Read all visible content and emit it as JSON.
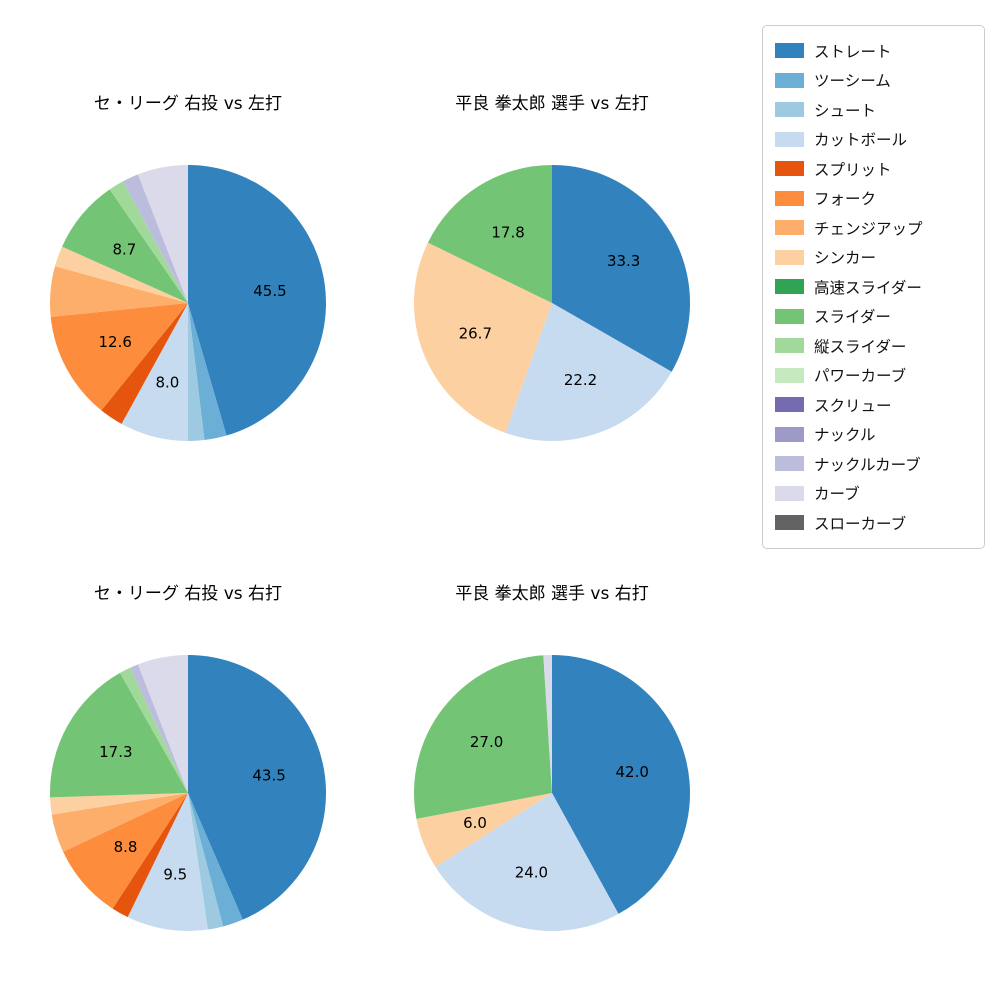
{
  "page": {
    "background": "#ffffff"
  },
  "legend": {
    "items": [
      {
        "label": "ストレート",
        "color": "#3182bd"
      },
      {
        "label": "ツーシーム",
        "color": "#6baed6"
      },
      {
        "label": "シュート",
        "color": "#9ecae1"
      },
      {
        "label": "カットボール",
        "color": "#c6dbef"
      },
      {
        "label": "スプリット",
        "color": "#e6550d"
      },
      {
        "label": "フォーク",
        "color": "#fd8d3c"
      },
      {
        "label": "チェンジアップ",
        "color": "#fdae6b"
      },
      {
        "label": "シンカー",
        "color": "#fdd0a2"
      },
      {
        "label": "高速スライダー",
        "color": "#31a354"
      },
      {
        "label": "スライダー",
        "color": "#74c476"
      },
      {
        "label": "縦スライダー",
        "color": "#a1d99b"
      },
      {
        "label": "パワーカーブ",
        "color": "#c7e9c0"
      },
      {
        "label": "スクリュー",
        "color": "#756bb1"
      },
      {
        "label": "ナックル",
        "color": "#9e9ac8"
      },
      {
        "label": "ナックルカーブ",
        "color": "#bcbddc"
      },
      {
        "label": "カーブ",
        "color": "#dadaeb"
      },
      {
        "label": "スローカーブ",
        "color": "#636363"
      }
    ]
  },
  "chart_data": [
    {
      "type": "pie",
      "title": "セ・リーグ 右投 vs 左打",
      "start_angle_deg": -90,
      "direction": "clockwise",
      "value_unit": "percent",
      "label_distance": 0.6,
      "slices": [
        {
          "label": "ストレート",
          "value": 45.5,
          "labeled": true
        },
        {
          "label": "ツーシーム",
          "value": 2.6,
          "labeled": false
        },
        {
          "label": "シュート",
          "value": 1.9,
          "labeled": false
        },
        {
          "label": "カットボール",
          "value": 8.0,
          "labeled": true
        },
        {
          "label": "スプリット",
          "value": 2.8,
          "labeled": false
        },
        {
          "label": "フォーク",
          "value": 12.6,
          "labeled": true
        },
        {
          "label": "チェンジアップ",
          "value": 5.9,
          "labeled": false
        },
        {
          "label": "シンカー",
          "value": 2.4,
          "labeled": false
        },
        {
          "label": "スライダー",
          "value": 8.7,
          "labeled": true
        },
        {
          "label": "縦スライダー",
          "value": 1.8,
          "labeled": false
        },
        {
          "label": "ナックルカーブ",
          "value": 1.9,
          "labeled": false
        },
        {
          "label": "カーブ",
          "value": 5.9,
          "labeled": false
        }
      ]
    },
    {
      "type": "pie",
      "title": "平良 拳太郎 選手 vs 左打",
      "start_angle_deg": -90,
      "direction": "clockwise",
      "value_unit": "percent",
      "label_distance": 0.6,
      "slices": [
        {
          "label": "ストレート",
          "value": 33.3,
          "labeled": true
        },
        {
          "label": "カットボール",
          "value": 22.2,
          "labeled": true
        },
        {
          "label": "シンカー",
          "value": 26.7,
          "labeled": true
        },
        {
          "label": "スライダー",
          "value": 17.8,
          "labeled": true
        }
      ]
    },
    {
      "type": "pie",
      "title": "セ・リーグ 右投 vs 右打",
      "start_angle_deg": -90,
      "direction": "clockwise",
      "value_unit": "percent",
      "label_distance": 0.6,
      "slices": [
        {
          "label": "ストレート",
          "value": 43.5,
          "labeled": true
        },
        {
          "label": "ツーシーム",
          "value": 2.4,
          "labeled": false
        },
        {
          "label": "シュート",
          "value": 1.8,
          "labeled": false
        },
        {
          "label": "カットボール",
          "value": 9.5,
          "labeled": true
        },
        {
          "label": "スプリット",
          "value": 2.0,
          "labeled": false
        },
        {
          "label": "フォーク",
          "value": 8.8,
          "labeled": true
        },
        {
          "label": "チェンジアップ",
          "value": 4.5,
          "labeled": false
        },
        {
          "label": "シンカー",
          "value": 2.0,
          "labeled": false
        },
        {
          "label": "スライダー",
          "value": 17.3,
          "labeled": true
        },
        {
          "label": "縦スライダー",
          "value": 1.3,
          "labeled": false
        },
        {
          "label": "ナックルカーブ",
          "value": 1.0,
          "labeled": false
        },
        {
          "label": "カーブ",
          "value": 5.9,
          "labeled": false
        }
      ]
    },
    {
      "type": "pie",
      "title": "平良 拳太郎 選手 vs 右打",
      "start_angle_deg": -90,
      "direction": "clockwise",
      "value_unit": "percent",
      "label_distance": 0.6,
      "slices": [
        {
          "label": "ストレート",
          "value": 42.0,
          "labeled": true
        },
        {
          "label": "カットボール",
          "value": 24.0,
          "labeled": true
        },
        {
          "label": "シンカー",
          "value": 6.0,
          "labeled": true
        },
        {
          "label": "スライダー",
          "value": 27.0,
          "labeled": true
        },
        {
          "label": "カーブ",
          "value": 1.0,
          "labeled": false
        }
      ]
    }
  ]
}
